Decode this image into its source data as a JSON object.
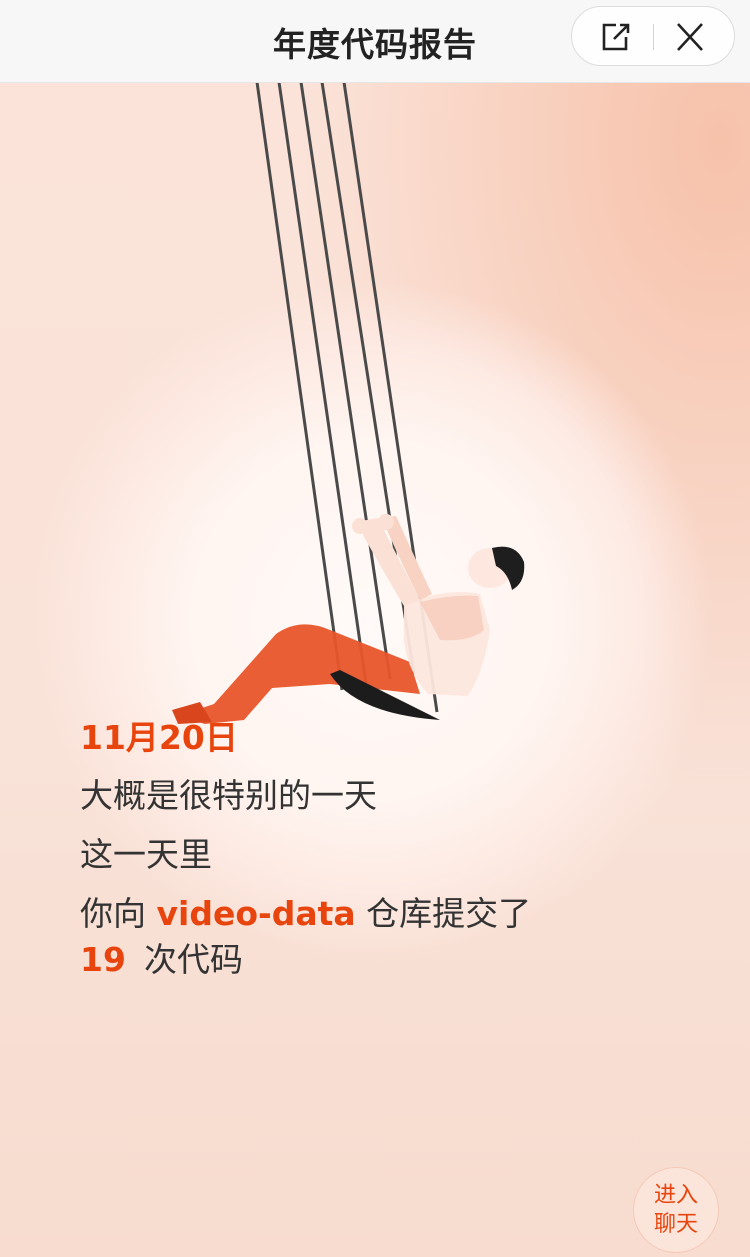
{
  "header": {
    "title": "年度代码报告",
    "share_icon": "share-external-icon",
    "close_icon": "close-icon"
  },
  "content": {
    "date": "11月20日",
    "line1": "大概是很特别的一天",
    "line2": "这一天里",
    "line3_prefix": "你向",
    "repo": "video-data",
    "line3_suffix": "仓库提交了",
    "commit_count": "19",
    "line4_suffix": "次代码"
  },
  "chat_button": {
    "line1": "进入",
    "line2": "聊天"
  },
  "colors": {
    "accent": "#e8440d",
    "text": "#333333",
    "header_bg": "#f7f7f7"
  }
}
